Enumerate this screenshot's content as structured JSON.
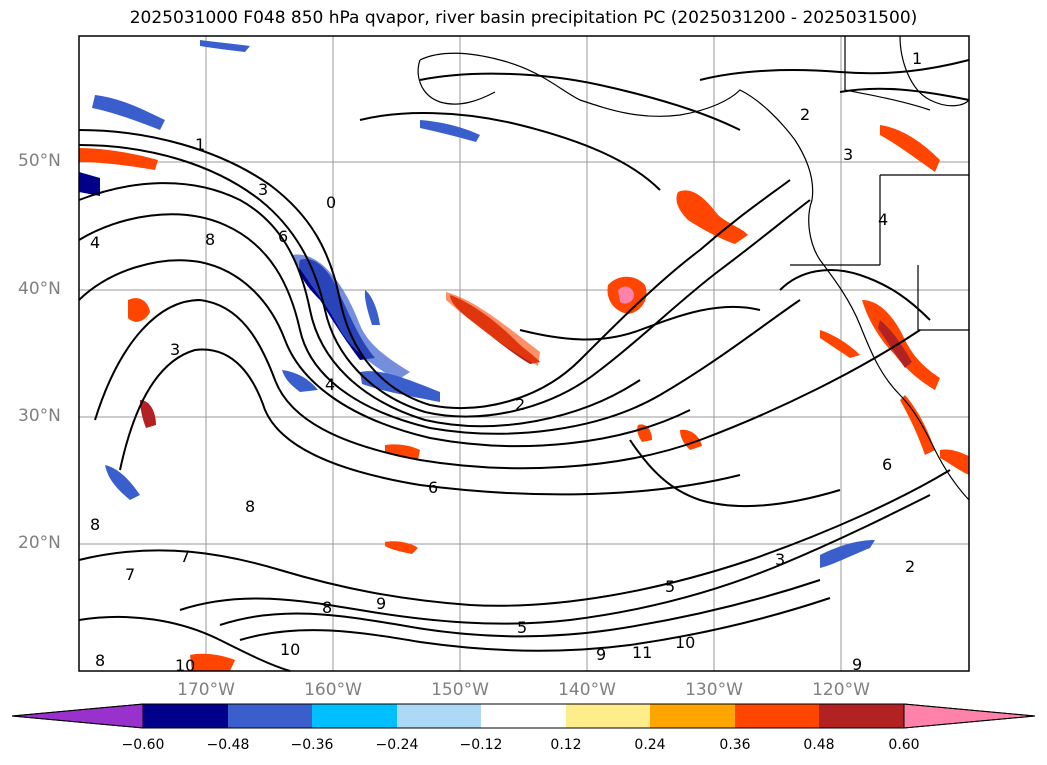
{
  "title": "2025031000 F048 850 hPa qvapor, river basin precipitation PC (2025031200 - 2025031500)",
  "lat_labels": [
    "50°N",
    "40°N",
    "30°N",
    "20°N"
  ],
  "lon_labels": [
    "170°W",
    "160°W",
    "150°W",
    "140°W",
    "130°W",
    "120°W"
  ],
  "colorbar": {
    "ticks": [
      "−0.60",
      "−0.48",
      "−0.36",
      "−0.24",
      "−0.12",
      "0.12",
      "0.24",
      "0.36",
      "0.48",
      "0.60"
    ],
    "colors": [
      "#9932CC",
      "#00008B",
      "#3A5FCD",
      "#00BFFF",
      "#ADD8F6",
      "#FFFFFF",
      "#FFEC8B",
      "#FFA500",
      "#FF4500",
      "#B22222",
      "#FF82AB"
    ],
    "extend": "both"
  },
  "contour_labels": [
    "1",
    "1",
    "2",
    "2",
    "2",
    "3",
    "3",
    "3",
    "4",
    "4",
    "6",
    "6",
    "6",
    "8",
    "8",
    "8",
    "7",
    "7",
    "8",
    "9",
    "9",
    "9",
    "10",
    "10",
    "10",
    "11",
    "0",
    "4",
    "3",
    "5",
    "5",
    "8"
  ],
  "map": {
    "extent_lon": [
      -180,
      -110
    ],
    "extent_lat": [
      10,
      60
    ],
    "gridlines": true,
    "land_color": "#FFFFFF",
    "coastline_color": "#000000"
  }
}
